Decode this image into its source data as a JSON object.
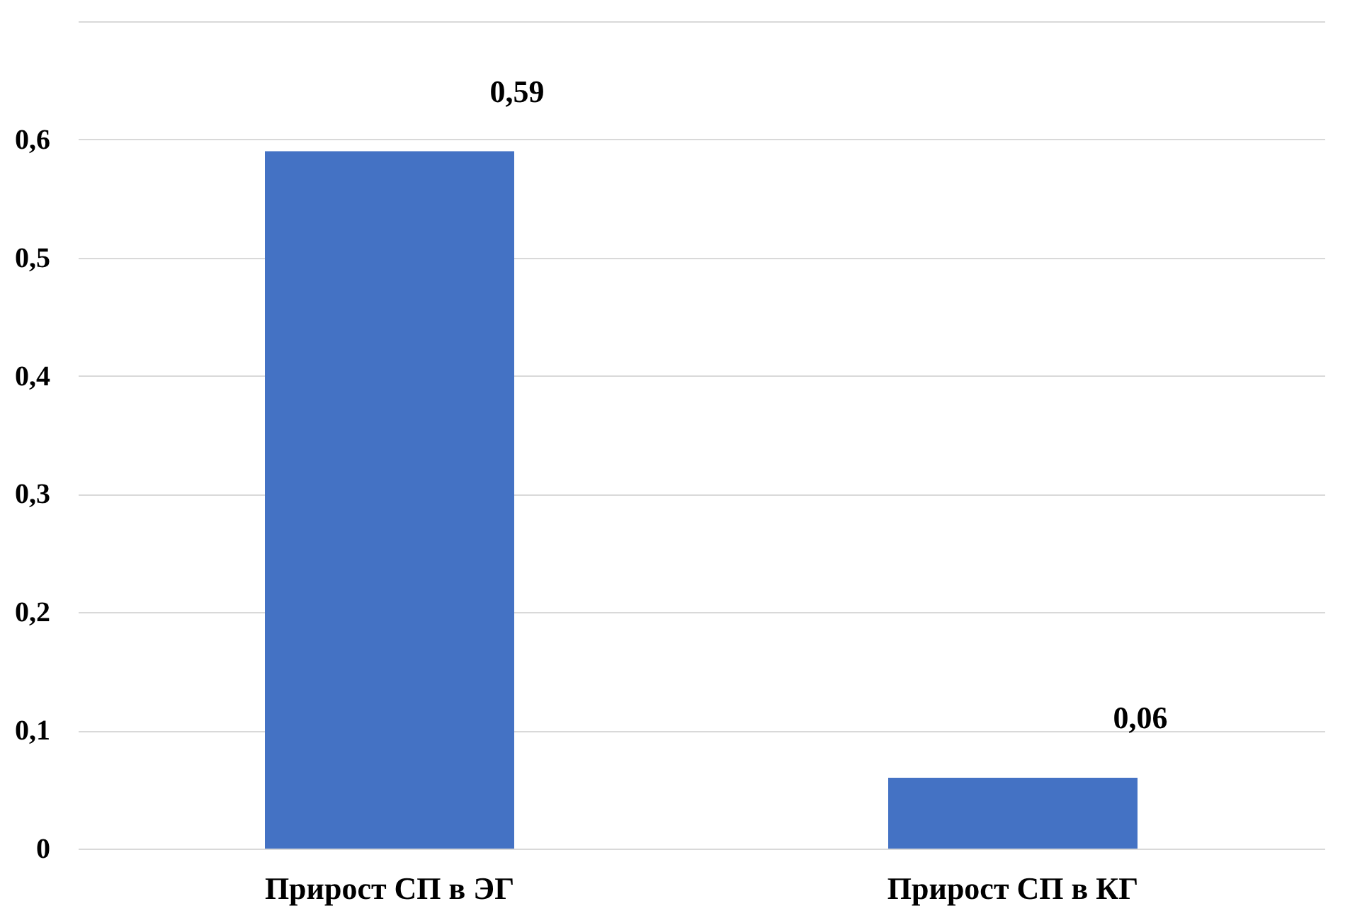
{
  "chart_data": {
    "type": "bar",
    "categories": [
      "Прирост СП в ЭГ",
      "Прирост СП в КГ"
    ],
    "values": [
      0.59,
      0.06
    ],
    "value_labels": [
      "0,59",
      "0,06"
    ],
    "color": "#4472c4",
    "ylim": [
      0,
      0.7
    ],
    "yticks": [
      {
        "value": 0,
        "label": "0"
      },
      {
        "value": 0.1,
        "label": "0,1"
      },
      {
        "value": 0.2,
        "label": "0,2"
      },
      {
        "value": 0.3,
        "label": "0,3"
      },
      {
        "value": 0.4,
        "label": "0,4"
      },
      {
        "value": 0.5,
        "label": "0,5"
      },
      {
        "value": 0.6,
        "label": "0,6"
      },
      {
        "value": 0.7,
        "label": null
      }
    ],
    "grid": "y"
  }
}
